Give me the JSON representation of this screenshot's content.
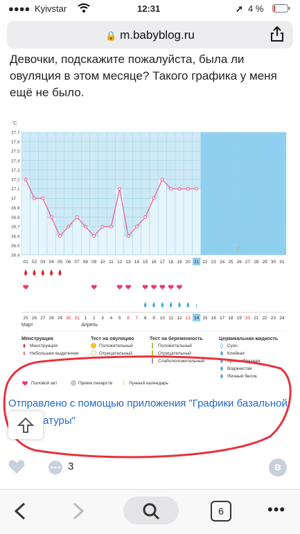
{
  "status_bar": {
    "carrier": "Kyivstar",
    "time": "12:31",
    "battery": "4 %"
  },
  "browser": {
    "url": "m.babyblog.ru",
    "tab_count": "6"
  },
  "post": {
    "text": "Девочки, подскажите пожалуйста, была ли овуляция в этом месяце? Такого графика у меня ещё не было."
  },
  "chart_data": {
    "type": "line",
    "unit_label": "°C",
    "ylim": [
      36.4,
      37.7
    ],
    "y_ticks": [
      "37.7",
      "37.6",
      "37.5",
      "37.4",
      "37.3",
      "37.2",
      "37.1",
      "37",
      "36.9",
      "36.8",
      "36.7",
      "36.6",
      "36.5",
      "36.4"
    ],
    "cycle_days": [
      "01",
      "02",
      "03",
      "04",
      "05",
      "06",
      "07",
      "08",
      "09",
      "10",
      "11",
      "12",
      "13",
      "14",
      "15",
      "16",
      "17",
      "18",
      "19",
      "20",
      "21",
      "22",
      "23",
      "24",
      "25",
      "26",
      "27",
      "28",
      "29",
      "30",
      "31"
    ],
    "highlight_day": "21",
    "temperatures": [
      37.2,
      37.0,
      37.0,
      36.8,
      36.6,
      36.7,
      36.8,
      36.7,
      36.6,
      36.7,
      36.7,
      37.1,
      36.6,
      36.7,
      36.8,
      37.0,
      37.2,
      37.1,
      37.1,
      37.1,
      37.1
    ],
    "menstruation_days": [
      "01",
      "02",
      "03",
      "04",
      "05"
    ],
    "intercourse_days": [
      "01",
      "09",
      "12",
      "13",
      "15",
      "16",
      "17",
      "18",
      "19"
    ],
    "fluid_days": [
      "15",
      "16",
      "17",
      "18",
      "19",
      "20"
    ],
    "fluid_extra_day": "21",
    "moon_day": "26",
    "calendar_dates": [
      "25",
      "26",
      "27",
      "28",
      "29",
      "30",
      "31",
      "1",
      "2",
      "3",
      "4",
      "5",
      "6",
      "7",
      "8",
      "9",
      "10",
      "11",
      "12",
      "13",
      "14",
      "15",
      "16",
      "17",
      "18",
      "19",
      "20",
      "21",
      "22",
      "23",
      "24"
    ],
    "calendar_red_dates": [
      "30",
      "31",
      "6",
      "7",
      "13",
      "20"
    ],
    "calendar_highlight": "14",
    "month_labels": [
      "Март",
      "Апрель"
    ],
    "legend": {
      "menstruation": {
        "title": "Менструация",
        "items": [
          "Менструация",
          "Небольшие выделения"
        ]
      },
      "ovulation_test": {
        "title": "Тест на овуляцию",
        "items": [
          "Положительный",
          "Отрицательный"
        ]
      },
      "pregnancy_test": {
        "title": "Тест на беременность",
        "items": [
          "Положительный",
          "Отрицательный",
          "Слабоположительный"
        ]
      },
      "cervical_fluid": {
        "title": "Цервикальная жидкость",
        "items": [
          "Сухо",
          "Клейкая",
          "Кремообразная",
          "Водянистая",
          "Яичный белок"
        ]
      },
      "bottom": [
        "Половой акт",
        "Прием лекарств",
        "Лунный календарь"
      ]
    },
    "colors": {
      "plot_bg": "#cde9f6",
      "plot_bg_after": "#8fcfef",
      "line": "#e85a8a",
      "grid": "#9fd2ea"
    }
  },
  "sent_link": "Отправлено с помощью приложения \"Графики базальной температуры\"",
  "reactions": {
    "comments_count": "3"
  },
  "annotation": {
    "circle_color": "#e8313c"
  }
}
